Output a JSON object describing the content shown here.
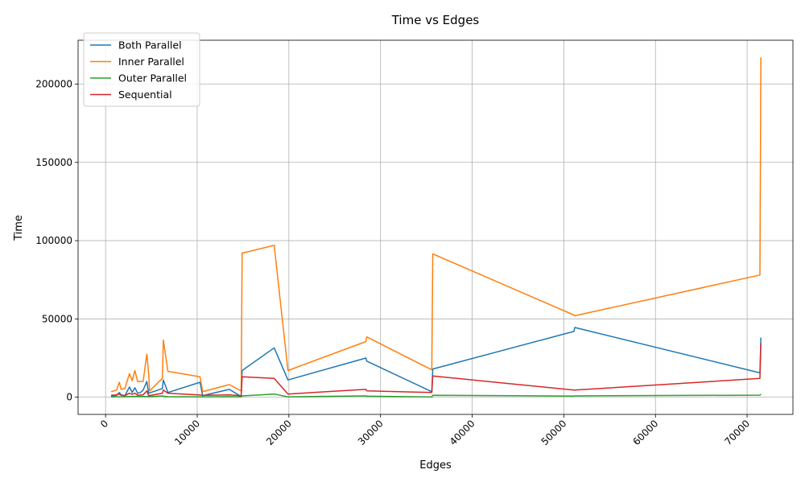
{
  "chart_data": {
    "type": "line",
    "title": "Time vs Edges",
    "xlabel": "Edges",
    "ylabel": "Time",
    "xlim": [
      -3000,
      75000
    ],
    "ylim": [
      -11000,
      228000
    ],
    "x_ticks": [
      0,
      10000,
      20000,
      30000,
      40000,
      50000,
      60000,
      70000
    ],
    "y_ticks": [
      0,
      50000,
      100000,
      150000,
      200000
    ],
    "x_tick_labels": [
      "0",
      "10000",
      "20000",
      "30000",
      "40000",
      "50000",
      "60000",
      "70000"
    ],
    "y_tick_labels": [
      "0",
      "50000",
      "100000",
      "150000",
      "200000"
    ],
    "x_tick_rotation": 45,
    "grid": true,
    "legend_position": "upper-left",
    "series": [
      {
        "name": "Both Parallel",
        "color": "#1f77b4",
        "x": [
          600,
          1200,
          1500,
          1700,
          2100,
          2600,
          2900,
          3200,
          3500,
          3800,
          4100,
          4500,
          4700,
          6200,
          6300,
          6800,
          10300,
          10600,
          13500,
          14800,
          14900,
          18400,
          19900,
          28400,
          28500,
          35600,
          35700,
          51100,
          51200,
          71400,
          71500
        ],
        "y": [
          700,
          1200,
          3000,
          1500,
          1000,
          6500,
          3000,
          6000,
          2500,
          3000,
          4500,
          10000,
          2500,
          5500,
          11000,
          3000,
          9500,
          1000,
          5000,
          400,
          17000,
          31500,
          11000,
          25000,
          23000,
          3500,
          18000,
          42000,
          44500,
          15500,
          38000
        ]
      },
      {
        "name": "Inner Parallel",
        "color": "#ff7f0e",
        "x": [
          600,
          1200,
          1500,
          1700,
          2100,
          2600,
          2900,
          3200,
          3500,
          3800,
          4100,
          4500,
          4700,
          4800,
          6200,
          6300,
          6800,
          10300,
          10600,
          13500,
          14800,
          14900,
          18400,
          19900,
          28400,
          28500,
          35600,
          35700,
          51100,
          51200,
          71400,
          71500
        ],
        "y": [
          3500,
          4500,
          9500,
          5000,
          5500,
          15000,
          10500,
          17000,
          10000,
          10000,
          10000,
          27500,
          15000,
          4000,
          12000,
          36500,
          16500,
          13000,
          3500,
          8000,
          4000,
          92000,
          97000,
          17000,
          35500,
          38500,
          17500,
          91500,
          52500,
          52000,
          78000,
          217000
        ]
      },
      {
        "name": "Outer Parallel",
        "color": "#2ca02c",
        "x": [
          600,
          1200,
          1500,
          2100,
          2600,
          3200,
          3800,
          4500,
          4700,
          6200,
          6300,
          6800,
          10300,
          10600,
          13500,
          14800,
          14900,
          18400,
          19900,
          28400,
          28500,
          35600,
          35700,
          51100,
          51200,
          71400,
          71500
        ],
        "y": [
          200,
          300,
          200,
          250,
          400,
          500,
          400,
          400,
          300,
          800,
          600,
          300,
          200,
          150,
          300,
          200,
          800,
          2000,
          200,
          800,
          600,
          100,
          1200,
          700,
          800,
          1300,
          2000
        ]
      },
      {
        "name": "Sequential",
        "color": "#d62728",
        "x": [
          600,
          1200,
          1500,
          1700,
          2100,
          2600,
          2900,
          3200,
          3500,
          3800,
          4100,
          4500,
          4700,
          6200,
          6300,
          6800,
          10300,
          10600,
          13500,
          14800,
          14900,
          18400,
          19900,
          28400,
          28500,
          35600,
          35700,
          51100,
          51200,
          71400,
          71500
        ],
        "y": [
          1200,
          1500,
          2000,
          1200,
          1000,
          2500,
          1800,
          2500,
          1300,
          1400,
          1500,
          4000,
          1000,
          2500,
          4500,
          2500,
          1400,
          1200,
          1500,
          1000,
          13000,
          12000,
          2000,
          5000,
          4000,
          3000,
          13500,
          4500,
          4500,
          12000,
          34500
        ]
      }
    ]
  }
}
